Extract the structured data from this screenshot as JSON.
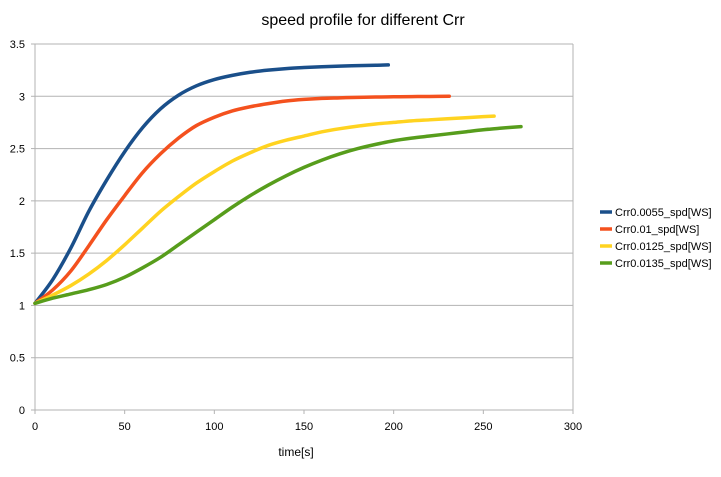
{
  "chart_data": {
    "type": "line",
    "title": "speed profile for different Crr",
    "xlabel": "time[s]",
    "ylabel": "",
    "xlim": [
      0,
      300
    ],
    "ylim": [
      0,
      3.5
    ],
    "xticks": [
      0,
      50,
      100,
      150,
      200,
      250,
      300
    ],
    "yticks": [
      0,
      0.5,
      1,
      1.5,
      2,
      2.5,
      3,
      3.5
    ],
    "xtick_labels": [
      "0",
      "50",
      "100",
      "150",
      "200",
      "250",
      "300"
    ],
    "ytick_labels": [
      "0",
      "0.5",
      "1",
      "1.5",
      "2",
      "2.5",
      "3",
      "3.5"
    ],
    "grid": "horizontal",
    "legend_position": "right",
    "series": [
      {
        "name": "Crr0.0055_spd[WS]",
        "color": "#1a4f8a",
        "x": [
          0,
          10,
          20,
          30,
          40,
          50,
          60,
          70,
          80,
          90,
          100,
          110,
          120,
          130,
          140,
          150,
          160,
          170,
          180,
          190,
          197
        ],
        "y": [
          1.02,
          1.25,
          1.55,
          1.9,
          2.2,
          2.47,
          2.7,
          2.88,
          3.01,
          3.1,
          3.16,
          3.2,
          3.23,
          3.25,
          3.265,
          3.275,
          3.283,
          3.289,
          3.293,
          3.297,
          3.3
        ]
      },
      {
        "name": "Crr0.01_spd[WS]",
        "color": "#f4511e",
        "x": [
          0,
          10,
          20,
          30,
          40,
          50,
          60,
          70,
          80,
          90,
          100,
          110,
          120,
          130,
          140,
          150,
          160,
          170,
          180,
          190,
          200,
          210,
          220,
          231
        ],
        "y": [
          1.02,
          1.15,
          1.33,
          1.57,
          1.82,
          2.05,
          2.27,
          2.45,
          2.6,
          2.72,
          2.8,
          2.86,
          2.9,
          2.93,
          2.955,
          2.97,
          2.98,
          2.985,
          2.99,
          2.993,
          2.995,
          2.997,
          2.998,
          3.0
        ]
      },
      {
        "name": "Crr0.0125_spd[WS]",
        "color": "#ffd320",
        "x": [
          0,
          10,
          20,
          30,
          40,
          50,
          60,
          70,
          80,
          90,
          100,
          110,
          120,
          130,
          140,
          150,
          160,
          170,
          180,
          190,
          200,
          210,
          220,
          230,
          240,
          250,
          256
        ],
        "y": [
          1.02,
          1.1,
          1.19,
          1.3,
          1.43,
          1.58,
          1.74,
          1.9,
          2.04,
          2.17,
          2.28,
          2.38,
          2.46,
          2.53,
          2.58,
          2.62,
          2.66,
          2.69,
          2.715,
          2.735,
          2.75,
          2.765,
          2.775,
          2.785,
          2.795,
          2.805,
          2.81
        ]
      },
      {
        "name": "Crr0.0135_spd[WS]",
        "color": "#579d1c",
        "x": [
          0,
          10,
          20,
          30,
          40,
          50,
          60,
          70,
          80,
          90,
          100,
          110,
          120,
          130,
          140,
          150,
          160,
          170,
          180,
          190,
          200,
          210,
          220,
          230,
          240,
          250,
          260,
          271
        ],
        "y": [
          1.02,
          1.07,
          1.11,
          1.15,
          1.2,
          1.27,
          1.36,
          1.46,
          1.58,
          1.7,
          1.82,
          1.94,
          2.05,
          2.15,
          2.24,
          2.32,
          2.39,
          2.45,
          2.5,
          2.54,
          2.575,
          2.6,
          2.62,
          2.64,
          2.66,
          2.68,
          2.695,
          2.71
        ]
      }
    ]
  }
}
